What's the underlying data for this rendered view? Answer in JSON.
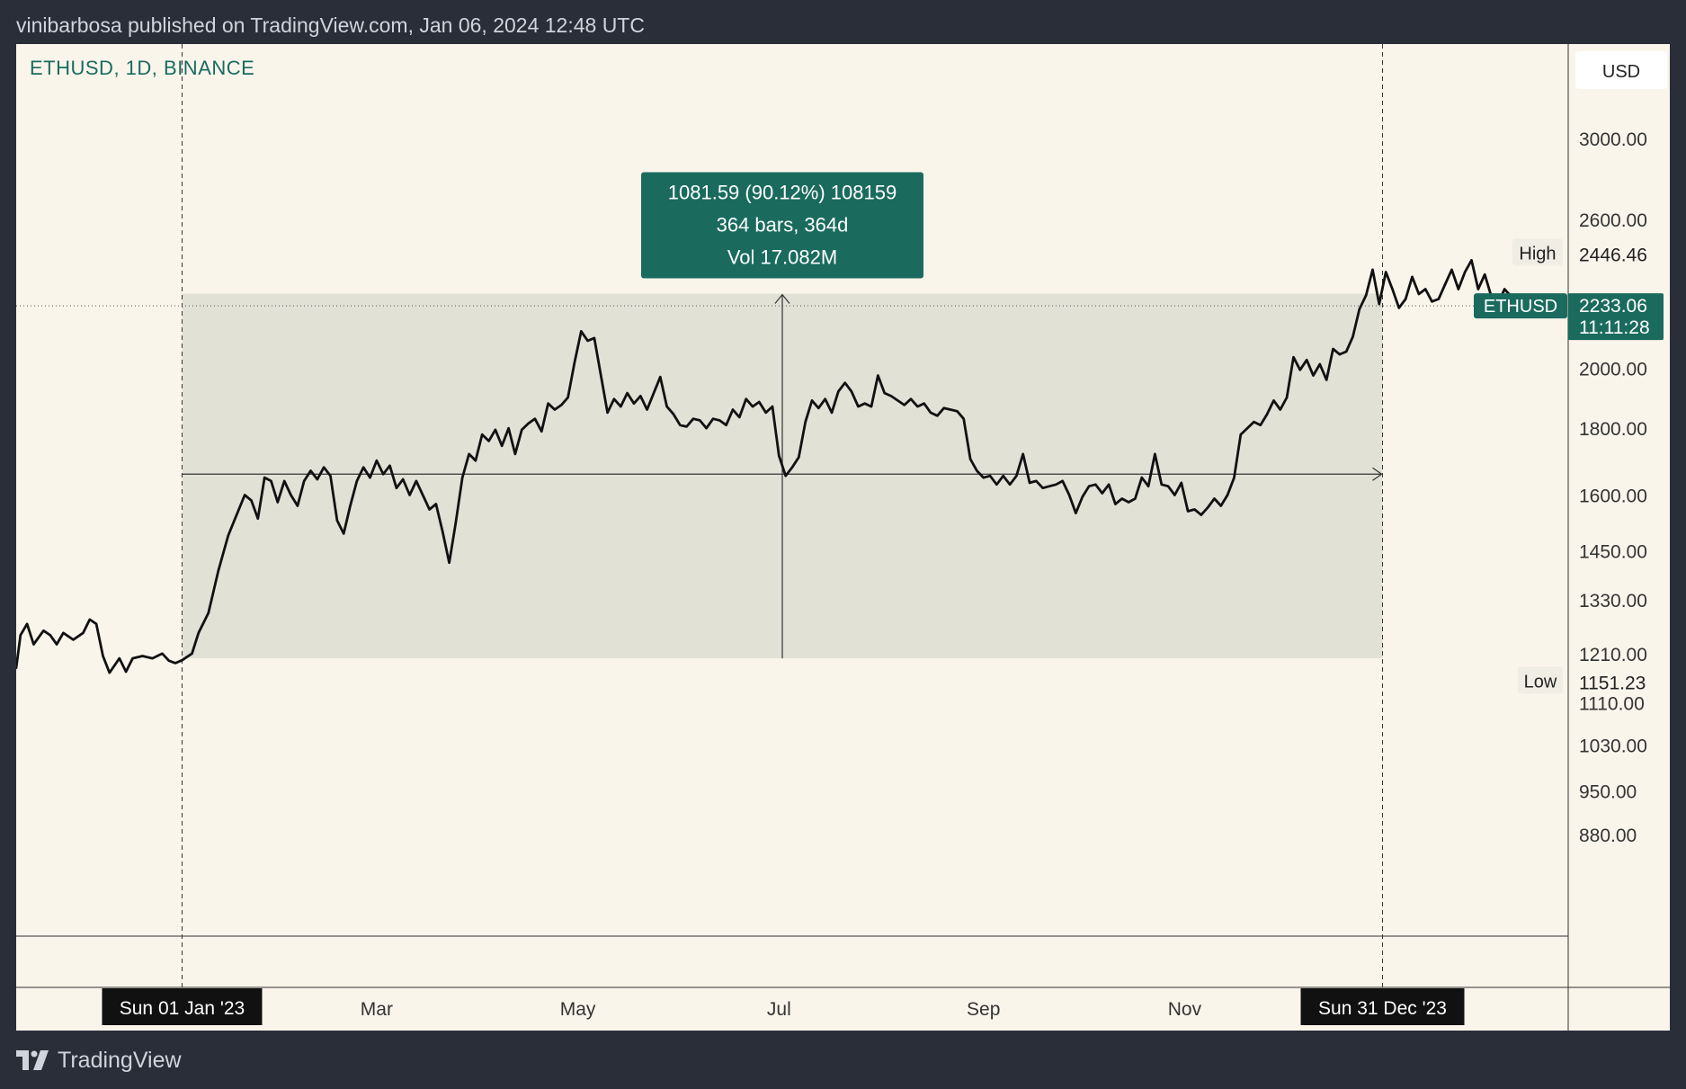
{
  "header": {
    "published_text": "vinibarbosa published on TradingView.com, Jan 06, 2024 12:48 UTC"
  },
  "symbol_info": "ETHUSD, 1D, BINANCE",
  "currency_label": "USD",
  "footer": {
    "brand": "TradingView",
    "logo_icon": "tradingview-logo-icon"
  },
  "colors": {
    "background": "#faf5eb",
    "frame": "#2a2e39",
    "accent": "#1a6b5e",
    "line": "#111111",
    "range_fill": "#e2e1d6"
  },
  "chart_data": {
    "type": "line",
    "series": [
      {
        "values": [
          [
            -50.3,
            1180
          ],
          [
            -49,
            1250
          ],
          [
            -47,
            1275
          ],
          [
            -45,
            1230
          ],
          [
            -42,
            1260
          ],
          [
            -40,
            1250
          ],
          [
            -38,
            1230
          ],
          [
            -36,
            1255
          ],
          [
            -33,
            1240
          ],
          [
            -30,
            1255
          ],
          [
            -28,
            1285
          ],
          [
            -26,
            1275
          ],
          [
            -24,
            1205
          ],
          [
            -22,
            1170
          ],
          [
            -19,
            1200
          ],
          [
            -17,
            1172
          ],
          [
            -15,
            1200
          ],
          [
            -12,
            1205
          ],
          [
            -9,
            1200
          ],
          [
            -6,
            1210
          ],
          [
            -4,
            1195
          ],
          [
            -2,
            1190
          ],
          [
            0,
            1196
          ],
          [
            3,
            1210
          ],
          [
            5,
            1255
          ],
          [
            8,
            1300
          ],
          [
            11,
            1400
          ],
          [
            14,
            1490
          ],
          [
            17,
            1555
          ],
          [
            19,
            1600
          ],
          [
            21,
            1585
          ],
          [
            23,
            1535
          ],
          [
            25,
            1650
          ],
          [
            27,
            1640
          ],
          [
            29,
            1580
          ],
          [
            31,
            1640
          ],
          [
            33,
            1600
          ],
          [
            35,
            1570
          ],
          [
            37,
            1640
          ],
          [
            39,
            1670
          ],
          [
            41,
            1645
          ],
          [
            43,
            1680
          ],
          [
            45,
            1655
          ],
          [
            47,
            1530
          ],
          [
            49,
            1495
          ],
          [
            51,
            1570
          ],
          [
            53,
            1640
          ],
          [
            55,
            1680
          ],
          [
            57,
            1650
          ],
          [
            59,
            1700
          ],
          [
            61,
            1660
          ],
          [
            63,
            1685
          ],
          [
            65,
            1620
          ],
          [
            67,
            1645
          ],
          [
            69,
            1600
          ],
          [
            71,
            1640
          ],
          [
            73,
            1600
          ],
          [
            75,
            1560
          ],
          [
            77,
            1575
          ],
          [
            79,
            1500
          ],
          [
            81,
            1420
          ],
          [
            83,
            1525
          ],
          [
            85,
            1650
          ],
          [
            87,
            1720
          ],
          [
            89,
            1700
          ],
          [
            91,
            1780
          ],
          [
            93,
            1760
          ],
          [
            95,
            1795
          ],
          [
            97,
            1745
          ],
          [
            99,
            1800
          ],
          [
            101,
            1720
          ],
          [
            103,
            1795
          ],
          [
            105,
            1815
          ],
          [
            107,
            1830
          ],
          [
            109,
            1790
          ],
          [
            111,
            1880
          ],
          [
            113,
            1860
          ],
          [
            115,
            1875
          ],
          [
            117,
            1900
          ],
          [
            119,
            2020
          ],
          [
            121,
            2135
          ],
          [
            123,
            2100
          ],
          [
            125,
            2110
          ],
          [
            127,
            1975
          ],
          [
            129,
            1850
          ],
          [
            131,
            1895
          ],
          [
            133,
            1870
          ],
          [
            135,
            1915
          ],
          [
            137,
            1880
          ],
          [
            139,
            1905
          ],
          [
            141,
            1860
          ],
          [
            143,
            1915
          ],
          [
            145,
            1970
          ],
          [
            147,
            1870
          ],
          [
            149,
            1845
          ],
          [
            151,
            1810
          ],
          [
            153,
            1805
          ],
          [
            155,
            1830
          ],
          [
            157,
            1825
          ],
          [
            159,
            1800
          ],
          [
            161,
            1830
          ],
          [
            163,
            1825
          ],
          [
            165,
            1810
          ],
          [
            167,
            1860
          ],
          [
            169,
            1835
          ],
          [
            171,
            1895
          ],
          [
            173,
            1870
          ],
          [
            175,
            1885
          ],
          [
            177,
            1850
          ],
          [
            179,
            1870
          ],
          [
            181,
            1715
          ],
          [
            183,
            1655
          ],
          [
            185,
            1680
          ],
          [
            187,
            1710
          ],
          [
            189,
            1820
          ],
          [
            191,
            1890
          ],
          [
            193,
            1865
          ],
          [
            195,
            1895
          ],
          [
            197,
            1850
          ],
          [
            199,
            1920
          ],
          [
            201,
            1950
          ],
          [
            203,
            1920
          ],
          [
            205,
            1870
          ],
          [
            207,
            1880
          ],
          [
            209,
            1870
          ],
          [
            211,
            1975
          ],
          [
            213,
            1915
          ],
          [
            215,
            1905
          ],
          [
            217,
            1890
          ],
          [
            219,
            1875
          ],
          [
            221,
            1895
          ],
          [
            223,
            1870
          ],
          [
            225,
            1880
          ],
          [
            227,
            1850
          ],
          [
            229,
            1840
          ],
          [
            231,
            1865
          ],
          [
            233,
            1860
          ],
          [
            235,
            1855
          ],
          [
            237,
            1830
          ],
          [
            239,
            1705
          ],
          [
            241,
            1670
          ],
          [
            243,
            1650
          ],
          [
            245,
            1655
          ],
          [
            247,
            1630
          ],
          [
            249,
            1655
          ],
          [
            251,
            1630
          ],
          [
            253,
            1655
          ],
          [
            255,
            1720
          ],
          [
            257,
            1635
          ],
          [
            259,
            1640
          ],
          [
            261,
            1620
          ],
          [
            263,
            1625
          ],
          [
            265,
            1630
          ],
          [
            267,
            1640
          ],
          [
            269,
            1600
          ],
          [
            271,
            1550
          ],
          [
            273,
            1595
          ],
          [
            275,
            1625
          ],
          [
            277,
            1630
          ],
          [
            279,
            1605
          ],
          [
            281,
            1630
          ],
          [
            283,
            1575
          ],
          [
            285,
            1590
          ],
          [
            287,
            1580
          ],
          [
            289,
            1590
          ],
          [
            291,
            1650
          ],
          [
            293,
            1625
          ],
          [
            295,
            1720
          ],
          [
            297,
            1630
          ],
          [
            299,
            1625
          ],
          [
            301,
            1600
          ],
          [
            303,
            1635
          ],
          [
            305,
            1555
          ],
          [
            307,
            1560
          ],
          [
            309,
            1545
          ],
          [
            311,
            1565
          ],
          [
            313,
            1590
          ],
          [
            315,
            1570
          ],
          [
            317,
            1600
          ],
          [
            319,
            1650
          ],
          [
            321,
            1780
          ],
          [
            323,
            1800
          ],
          [
            325,
            1820
          ],
          [
            327,
            1810
          ],
          [
            329,
            1845
          ],
          [
            331,
            1890
          ],
          [
            333,
            1860
          ],
          [
            335,
            1900
          ],
          [
            337,
            2040
          ],
          [
            339,
            1995
          ],
          [
            341,
            2030
          ],
          [
            343,
            1975
          ],
          [
            345,
            2015
          ],
          [
            347,
            1960
          ],
          [
            349,
            2070
          ],
          [
            351,
            2050
          ],
          [
            353,
            2060
          ],
          [
            355,
            2115
          ],
          [
            357,
            2220
          ],
          [
            359,
            2275
          ],
          [
            361,
            2380
          ],
          [
            363,
            2240
          ],
          [
            365,
            2370
          ],
          [
            367,
            2300
          ],
          [
            369,
            2225
          ],
          [
            371,
            2260
          ],
          [
            373,
            2350
          ],
          [
            375,
            2280
          ],
          [
            377,
            2300
          ],
          [
            379,
            2250
          ],
          [
            381,
            2260
          ],
          [
            383,
            2320
          ],
          [
            385,
            2380
          ],
          [
            387,
            2300
          ],
          [
            389,
            2370
          ],
          [
            391,
            2420
          ],
          [
            393,
            2300
          ],
          [
            395,
            2360
          ],
          [
            397,
            2270
          ],
          [
            399,
            2240
          ],
          [
            401,
            2300
          ],
          [
            403,
            2270
          ],
          [
            405,
            2235
          ],
          [
            406,
            2233.06
          ]
        ]
      }
    ],
    "xlim": [
      -50.3,
      420.3
    ],
    "ylim_log": [
      800,
      3190
    ],
    "y_scale": "log",
    "x_ticks": [
      {
        "x": 59,
        "label": "Mar"
      },
      {
        "x": 120,
        "label": "May"
      },
      {
        "x": 181,
        "label": "Jul"
      },
      {
        "x": 243,
        "label": "Sep"
      },
      {
        "x": 304,
        "label": "Nov"
      }
    ],
    "y_ticks": [
      3000,
      2600,
      2000,
      1800,
      1600,
      1450,
      1330,
      1210,
      1110,
      1030,
      950,
      880
    ],
    "y_tick_labels": [
      "3000.00",
      "2600.00",
      "2000.00",
      "1800.00",
      "1600.00",
      "1450.00",
      "1330.00",
      "1210.00",
      "1110.00",
      "1030.00",
      "950.00",
      "880.00"
    ],
    "range_start": {
      "x": 0,
      "label": "Sun 01 Jan '23"
    },
    "range_end": {
      "x": 364,
      "label": "Sun 31 Dec '23"
    },
    "range_low_price": 1200,
    "range_high_price": 2281.59,
    "range_mid_price": 1660,
    "measurement": {
      "line1": "1081.59 (90.12%) 108159",
      "line2": "364 bars, 364d",
      "line3": "Vol 17.082M"
    },
    "high": {
      "label": "High",
      "value": "2446.46",
      "price": 2446.46
    },
    "low": {
      "label": "Low",
      "value": "1151.23",
      "price": 1151.23
    },
    "last": {
      "label": "ETHUSD",
      "value": "2233.06",
      "countdown": "11:11:28",
      "price": 2233.06
    }
  }
}
